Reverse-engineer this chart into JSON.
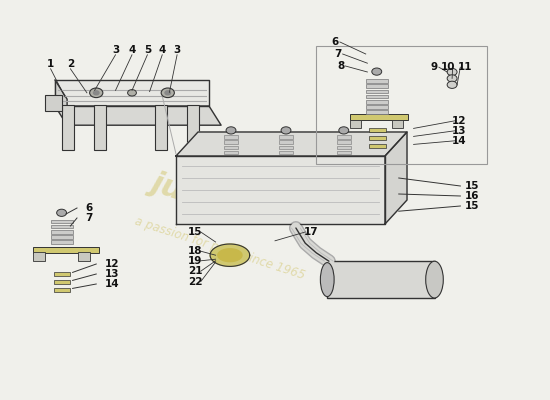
{
  "background_color": "#f0f0eb",
  "watermark_color": "#d4c875",
  "line_color": "#333333",
  "label_color": "#111111",
  "part_color": "#cccccc",
  "accent_color": "#c8b84a",
  "bracket_top_face": "#e8e8e4",
  "bracket_left_face": "#d0d0cc",
  "bracket_front_face": "#d8d8d4",
  "tank_top_face": "#dcdcd8",
  "tank_front_face": "#e4e4e0",
  "tank_right_face": "#d4d4d0",
  "spring_color": "#ccccca",
  "washer_color": "#d0c870",
  "pipe_color": "#d8d8d4"
}
